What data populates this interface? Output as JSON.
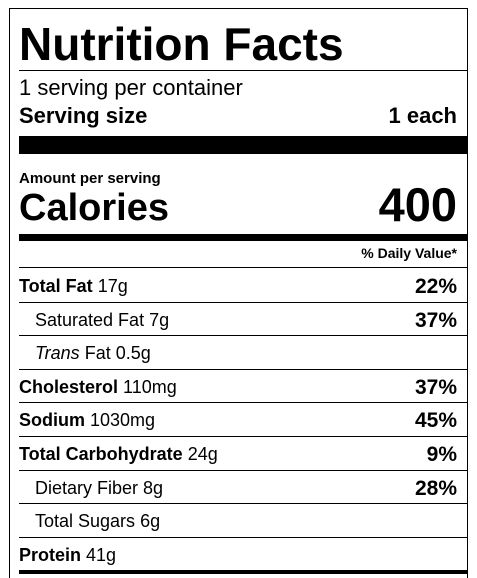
{
  "title": "Nutrition Facts",
  "servings": "1 serving per container",
  "serving_size": {
    "label": "Serving size",
    "value": "1 each"
  },
  "amount_per_serving": "Amount per serving",
  "calories": {
    "label": "Calories",
    "value": "400"
  },
  "daily_value_header": "% Daily Value*",
  "rows": [
    {
      "name": "Total Fat",
      "amount": "17g",
      "dv": "22%",
      "bold": true,
      "indent": false
    },
    {
      "name": "Saturated Fat",
      "amount": "7g",
      "dv": "37%",
      "bold": false,
      "indent": true
    },
    {
      "name_italic": "Trans",
      "name": "Fat",
      "amount": "0.5g",
      "bold": false,
      "indent": true
    },
    {
      "name": "Cholesterol",
      "amount": "110mg",
      "dv": "37%",
      "bold": true,
      "indent": false
    },
    {
      "name": "Sodium",
      "amount": "1030mg",
      "dv": "45%",
      "bold": true,
      "indent": false
    },
    {
      "name": "Total Carbohydrate",
      "amount": "24g",
      "dv": "9%",
      "bold": true,
      "indent": false
    },
    {
      "name": "Dietary Fiber",
      "amount": "8g",
      "dv": "28%",
      "bold": false,
      "indent": true
    },
    {
      "name": "Total Sugars",
      "amount": "6g",
      "bold": false,
      "indent": true
    },
    {
      "name": "Protein",
      "amount": "41g",
      "bold": true,
      "indent": false
    }
  ]
}
